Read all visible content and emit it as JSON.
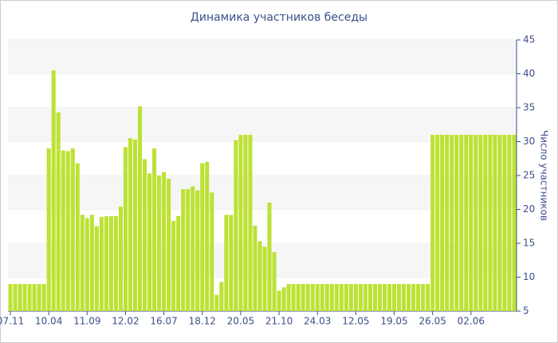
{
  "chart_data": {
    "type": "bar",
    "title": "Динамика участников беседы",
    "ylabel": "Число участников",
    "categories": [
      "07.11",
      null,
      null,
      null,
      null,
      null,
      null,
      null,
      "10.04",
      null,
      null,
      null,
      null,
      null,
      null,
      null,
      "11.09",
      null,
      null,
      null,
      null,
      null,
      null,
      null,
      "12.02",
      null,
      null,
      null,
      null,
      null,
      null,
      null,
      "16.07",
      null,
      null,
      null,
      null,
      null,
      null,
      null,
      "18.12",
      null,
      null,
      null,
      null,
      null,
      null,
      null,
      "20.05",
      null,
      null,
      null,
      null,
      null,
      null,
      null,
      "21.10",
      null,
      null,
      null,
      null,
      null,
      null,
      null,
      "24.03",
      null,
      null,
      null,
      null,
      null,
      null,
      null,
      "12.05",
      null,
      null,
      null,
      null,
      null,
      null,
      null,
      "19.05",
      null,
      null,
      null,
      null,
      null,
      null,
      null,
      "26.05",
      null,
      null,
      null,
      null,
      null,
      null,
      null,
      "02.06",
      null,
      null,
      null,
      null,
      null,
      null,
      null,
      null,
      null
    ],
    "values": [
      9,
      9,
      9,
      9,
      9,
      9,
      9,
      9,
      29,
      40.5,
      34.3,
      28.7,
      28.6,
      29,
      26.8,
      19.2,
      18.7,
      19.2,
      17.5,
      18.9,
      19,
      19,
      19,
      20.4,
      29.2,
      30.5,
      30.3,
      35.2,
      27.4,
      25.3,
      29,
      25,
      25.5,
      24.5,
      18.3,
      19,
      23,
      23,
      23.4,
      22.8,
      26.8,
      27,
      22.5,
      7.4,
      9.3,
      19.2,
      19.2,
      30.2,
      31,
      31,
      31,
      17.6,
      15.3,
      14.5,
      21,
      13.7,
      8,
      8.5,
      9,
      9,
      9,
      9,
      9,
      9,
      9,
      9,
      9,
      9,
      9,
      9,
      9,
      9,
      9,
      9,
      9,
      9,
      9,
      9,
      9,
      9,
      9,
      9,
      9,
      9,
      9,
      9,
      9,
      9,
      31,
      31,
      31,
      31,
      31,
      31,
      31,
      31,
      31,
      31,
      31,
      31,
      31,
      31,
      31,
      31,
      31,
      31
    ],
    "color": "#bce235",
    "ylim": [
      5,
      45
    ],
    "yticks": [
      5,
      10,
      15,
      20,
      25,
      30,
      35,
      40,
      45
    ],
    "grid": true
  }
}
